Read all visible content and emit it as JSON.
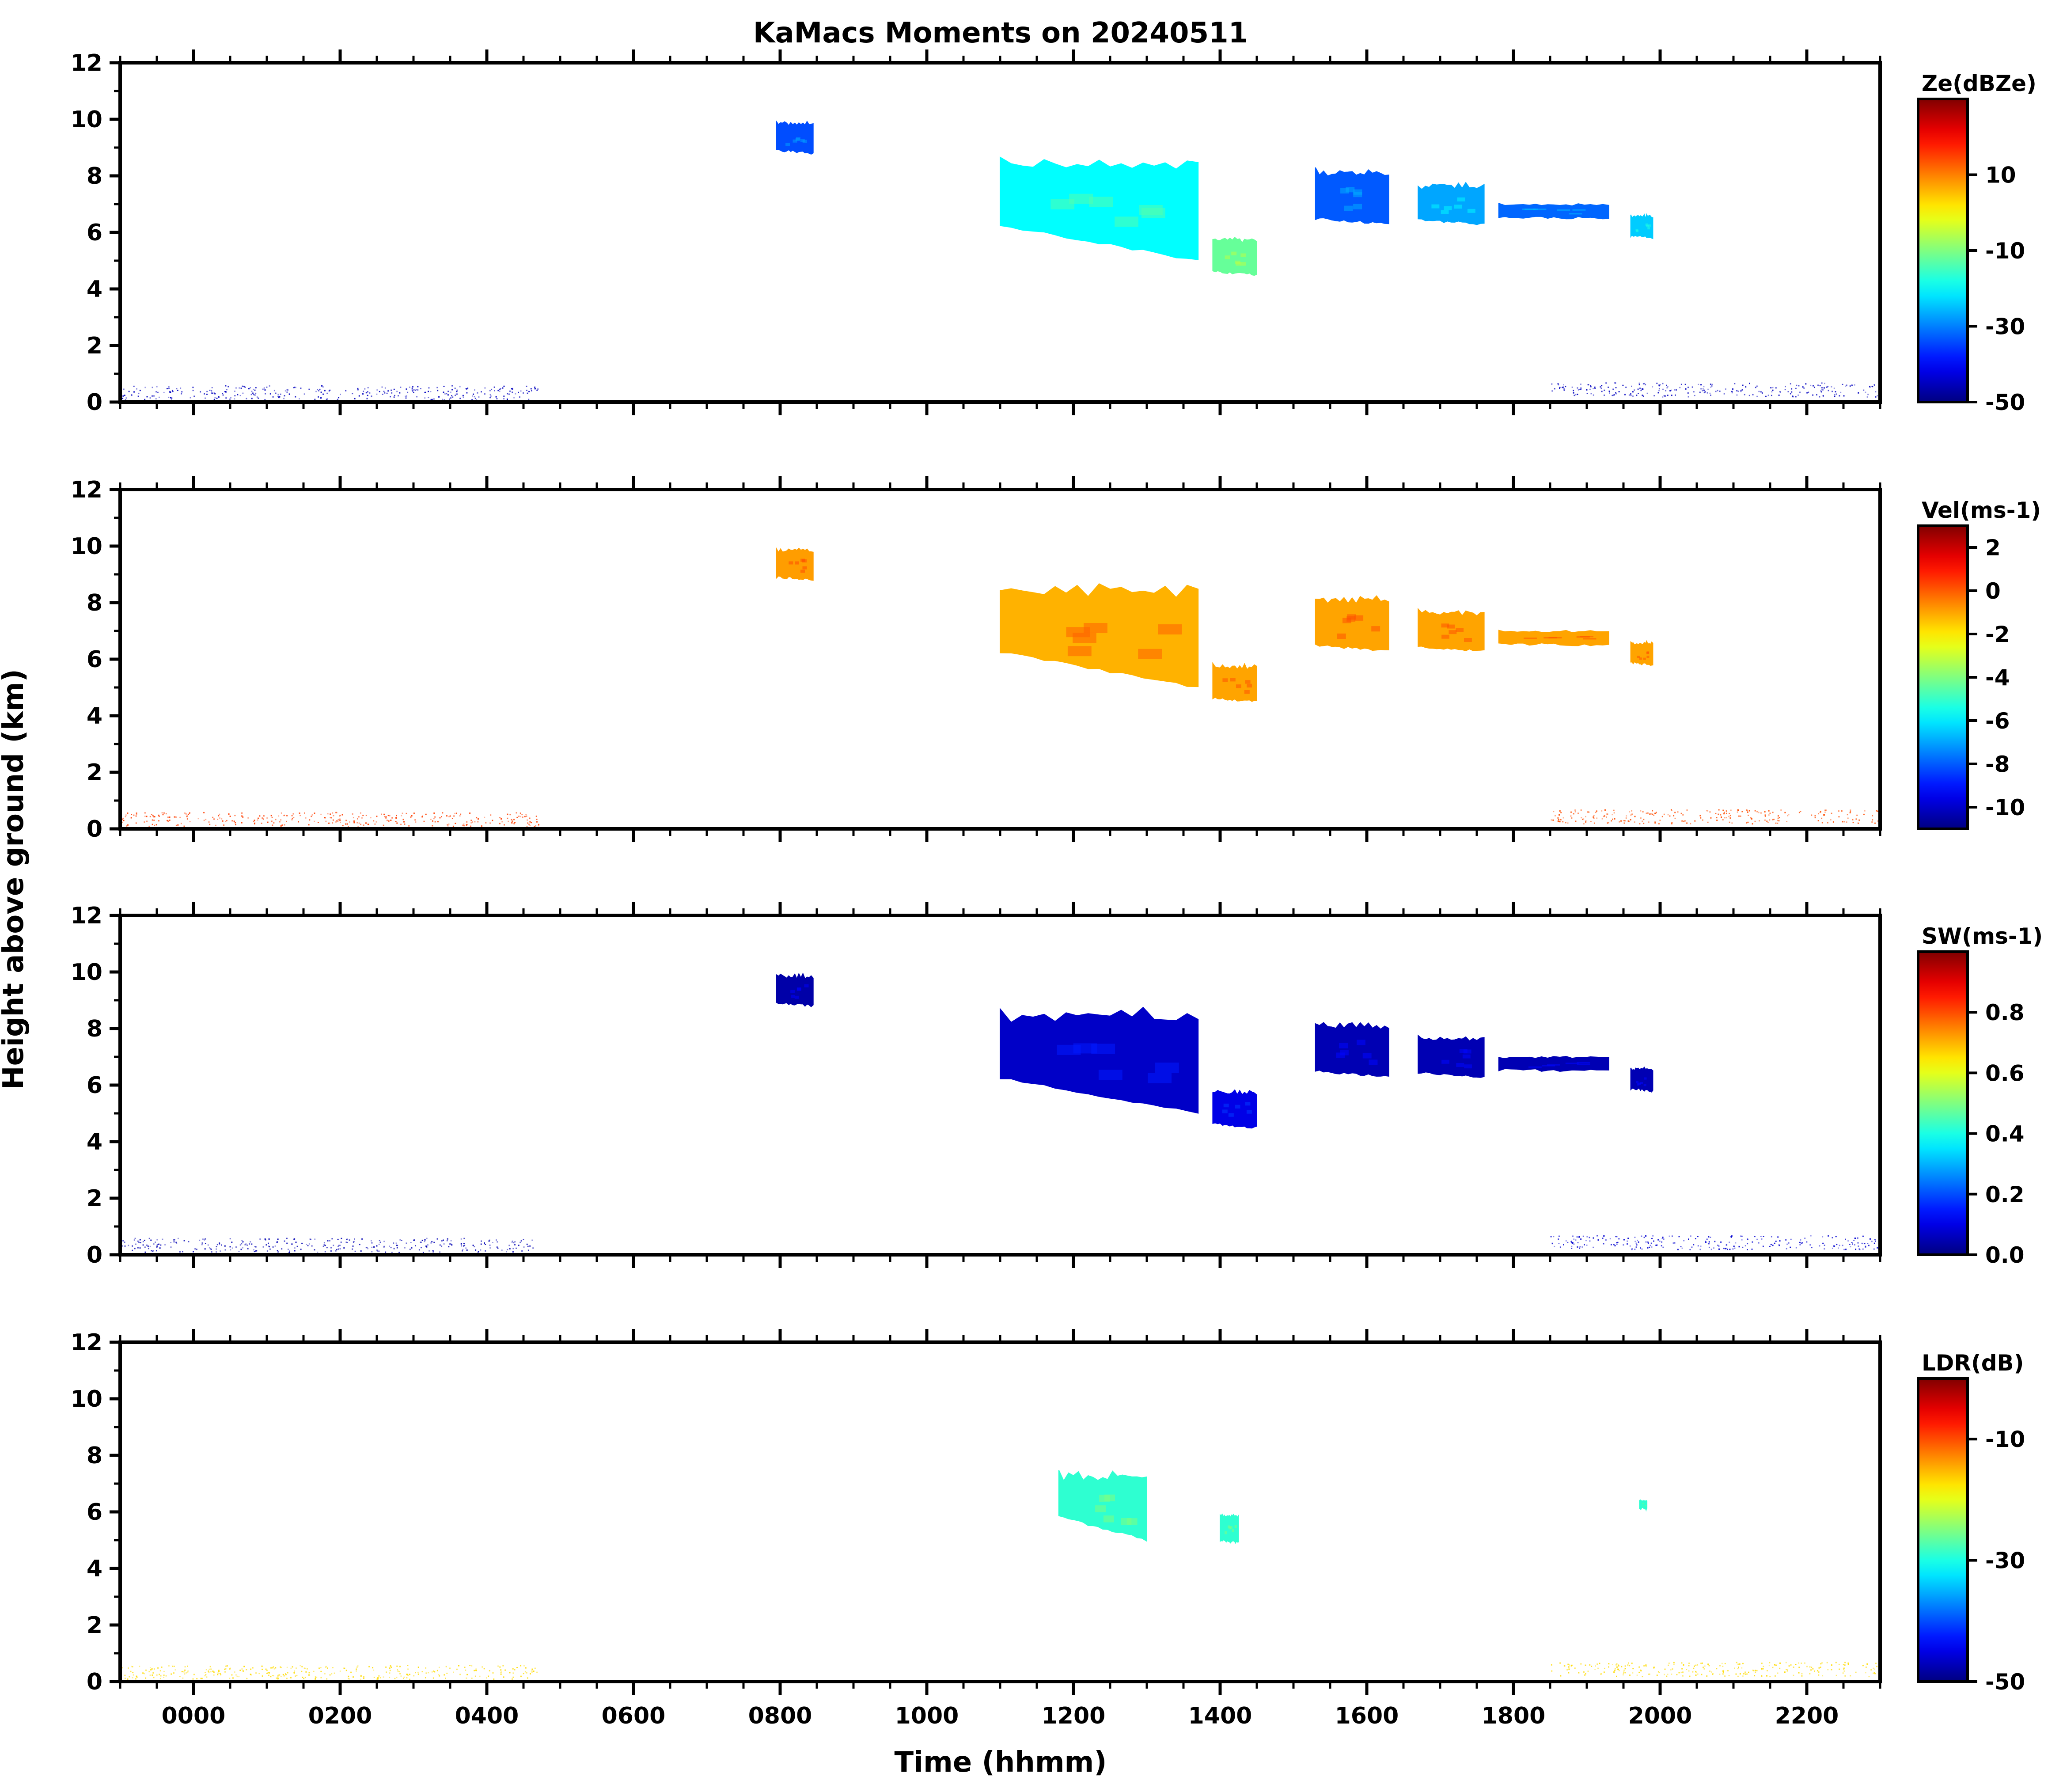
{
  "figure": {
    "title": "KaMacs Moments on 20240511",
    "xlabel": "Time (hhmm)",
    "ylabel": "Height above ground (km)"
  },
  "chart_data": {
    "type": "heatmap",
    "title": "KaMacs Moments on 20240511",
    "xlabel": "Time (hhmm)",
    "ylabel": "Height above ground (km)",
    "x_range_hours": [
      -1.0,
      23.0
    ],
    "x_ticks": [
      {
        "hour": 0,
        "label": "0000"
      },
      {
        "hour": 2,
        "label": "0200"
      },
      {
        "hour": 4,
        "label": "0400"
      },
      {
        "hour": 6,
        "label": "0600"
      },
      {
        "hour": 8,
        "label": "0800"
      },
      {
        "hour": 10,
        "label": "1000"
      },
      {
        "hour": 12,
        "label": "1200"
      },
      {
        "hour": 14,
        "label": "1400"
      },
      {
        "hour": 16,
        "label": "1600"
      },
      {
        "hour": 18,
        "label": "1800"
      },
      {
        "hour": 20,
        "label": "2000"
      },
      {
        "hour": 22,
        "label": "2200"
      }
    ],
    "ylim": [
      0,
      12
    ],
    "y_ticks": [
      0,
      2,
      4,
      6,
      8,
      10,
      12
    ],
    "grid": false,
    "colormap": "jet",
    "panels": [
      {
        "id": "ze",
        "colorbar_label": "Ze(dBZe)",
        "vmin": -50,
        "vmax": 30,
        "cbar_ticks": [
          {
            "v": -50,
            "label": "-50"
          },
          {
            "v": -30,
            "label": "-30"
          },
          {
            "v": -10,
            "label": "-10"
          },
          {
            "v": 10,
            "label": "10"
          }
        ],
        "features": [
          {
            "name": "boundary-layer-clutter",
            "t0": -1.0,
            "t1": 4.7,
            "zlo": 0.1,
            "zhi": 0.6,
            "value": -45
          },
          {
            "name": "cloud-0815",
            "t0": 7.95,
            "t1": 8.45,
            "zlo": 8.8,
            "zhi": 9.9,
            "value": -34
          },
          {
            "name": "main-cloud",
            "t0": 11.0,
            "t1": 13.7,
            "zlo": 5.0,
            "zhi": 8.6,
            "value": -20
          },
          {
            "name": "cloud-1410",
            "t0": 13.9,
            "t1": 14.5,
            "zlo": 4.5,
            "zhi": 5.8,
            "value": -12
          },
          {
            "name": "cloud-1540",
            "t0": 15.3,
            "t1": 16.3,
            "zlo": 6.3,
            "zhi": 8.2,
            "value": -33
          },
          {
            "name": "cloud-1710",
            "t0": 16.7,
            "t1": 17.6,
            "zlo": 6.3,
            "zhi": 7.7,
            "value": -27
          },
          {
            "name": "cloud-1850",
            "t0": 17.8,
            "t1": 19.3,
            "zlo": 6.5,
            "zhi": 7.0,
            "value": -32
          },
          {
            "name": "cloud-1975",
            "t0": 19.6,
            "t1": 19.9,
            "zlo": 5.8,
            "zhi": 6.6,
            "value": -24
          },
          {
            "name": "late-clutter",
            "t0": 18.5,
            "t1": 23.0,
            "zlo": 0.2,
            "zhi": 0.7,
            "value": -45
          }
        ]
      },
      {
        "id": "vel",
        "colorbar_label": "Vel(ms-1)",
        "vmin": -11,
        "vmax": 3,
        "cbar_ticks": [
          {
            "v": -10,
            "label": "-10"
          },
          {
            "v": -8,
            "label": "-8"
          },
          {
            "v": -6,
            "label": "-6"
          },
          {
            "v": -4,
            "label": "-4"
          },
          {
            "v": -2,
            "label": "-2"
          },
          {
            "v": 0,
            "label": "0"
          },
          {
            "v": 2,
            "label": "2"
          }
        ],
        "features": [
          {
            "name": "boundary-layer-clutter",
            "t0": -1.0,
            "t1": 4.7,
            "zlo": 0.1,
            "zhi": 0.6,
            "value": 0.4
          },
          {
            "name": "cloud-0815",
            "t0": 7.95,
            "t1": 8.45,
            "zlo": 8.8,
            "zhi": 9.9,
            "value": -0.9
          },
          {
            "name": "main-cloud",
            "t0": 11.0,
            "t1": 13.7,
            "zlo": 5.0,
            "zhi": 8.6,
            "value": -1.2
          },
          {
            "name": "cloud-1410",
            "t0": 13.9,
            "t1": 14.5,
            "zlo": 4.5,
            "zhi": 5.8,
            "value": -1.0
          },
          {
            "name": "cloud-1540",
            "t0": 15.3,
            "t1": 16.3,
            "zlo": 6.3,
            "zhi": 8.2,
            "value": -1.0
          },
          {
            "name": "cloud-1710",
            "t0": 16.7,
            "t1": 17.6,
            "zlo": 6.3,
            "zhi": 7.7,
            "value": -1.0
          },
          {
            "name": "cloud-1850",
            "t0": 17.8,
            "t1": 19.3,
            "zlo": 6.5,
            "zhi": 7.0,
            "value": -1.0
          },
          {
            "name": "cloud-1975",
            "t0": 19.6,
            "t1": 19.9,
            "zlo": 5.8,
            "zhi": 6.6,
            "value": -1.0
          },
          {
            "name": "late-clutter",
            "t0": 18.5,
            "t1": 23.0,
            "zlo": 0.2,
            "zhi": 0.7,
            "value": 0.2
          }
        ]
      },
      {
        "id": "sw",
        "colorbar_label": "SW(ms-1)",
        "vmin": 0.0,
        "vmax": 1.0,
        "cbar_ticks": [
          {
            "v": 0.0,
            "label": "0.0"
          },
          {
            "v": 0.2,
            "label": "0.2"
          },
          {
            "v": 0.4,
            "label": "0.4"
          },
          {
            "v": 0.6,
            "label": "0.6"
          },
          {
            "v": 0.8,
            "label": "0.8"
          }
        ],
        "features": [
          {
            "name": "boundary-layer-clutter",
            "t0": -1.0,
            "t1": 4.7,
            "zlo": 0.1,
            "zhi": 0.6,
            "value": 0.05
          },
          {
            "name": "cloud-0815",
            "t0": 7.95,
            "t1": 8.45,
            "zlo": 8.8,
            "zhi": 9.9,
            "value": 0.04
          },
          {
            "name": "main-cloud",
            "t0": 11.0,
            "t1": 13.7,
            "zlo": 5.0,
            "zhi": 8.6,
            "value": 0.07
          },
          {
            "name": "cloud-1410",
            "t0": 13.9,
            "t1": 14.5,
            "zlo": 4.5,
            "zhi": 5.8,
            "value": 0.1
          },
          {
            "name": "cloud-1540",
            "t0": 15.3,
            "t1": 16.3,
            "zlo": 6.3,
            "zhi": 8.2,
            "value": 0.05
          },
          {
            "name": "cloud-1710",
            "t0": 16.7,
            "t1": 17.6,
            "zlo": 6.3,
            "zhi": 7.7,
            "value": 0.05
          },
          {
            "name": "cloud-1850",
            "t0": 17.8,
            "t1": 19.3,
            "zlo": 6.5,
            "zhi": 7.0,
            "value": 0.05
          },
          {
            "name": "cloud-1975",
            "t0": 19.6,
            "t1": 19.9,
            "zlo": 5.8,
            "zhi": 6.6,
            "value": 0.05
          },
          {
            "name": "late-clutter",
            "t0": 18.5,
            "t1": 23.0,
            "zlo": 0.2,
            "zhi": 0.7,
            "value": 0.08
          }
        ]
      },
      {
        "id": "ldr",
        "colorbar_label": "LDR(dB)",
        "vmin": -50,
        "vmax": 0,
        "cbar_ticks": [
          {
            "v": -50,
            "label": "-50"
          },
          {
            "v": -30,
            "label": "-30"
          },
          {
            "v": -10,
            "label": "-10"
          }
        ],
        "features": [
          {
            "name": "boundary-layer-clutter",
            "t0": -1.0,
            "t1": 4.7,
            "zlo": 0.1,
            "zhi": 0.6,
            "value": -17
          },
          {
            "name": "main-cloud",
            "t0": 11.8,
            "t1": 13.0,
            "zlo": 5.0,
            "zhi": 7.4,
            "value": -29
          },
          {
            "name": "cloud-1410",
            "t0": 14.0,
            "t1": 14.25,
            "zlo": 4.9,
            "zhi": 5.9,
            "value": -29
          },
          {
            "name": "cloud-1975",
            "t0": 19.72,
            "t1": 19.82,
            "zlo": 6.1,
            "zhi": 6.4,
            "value": -29
          },
          {
            "name": "late-clutter",
            "t0": 18.5,
            "t1": 23.0,
            "zlo": 0.2,
            "zhi": 0.7,
            "value": -17
          }
        ]
      }
    ]
  }
}
